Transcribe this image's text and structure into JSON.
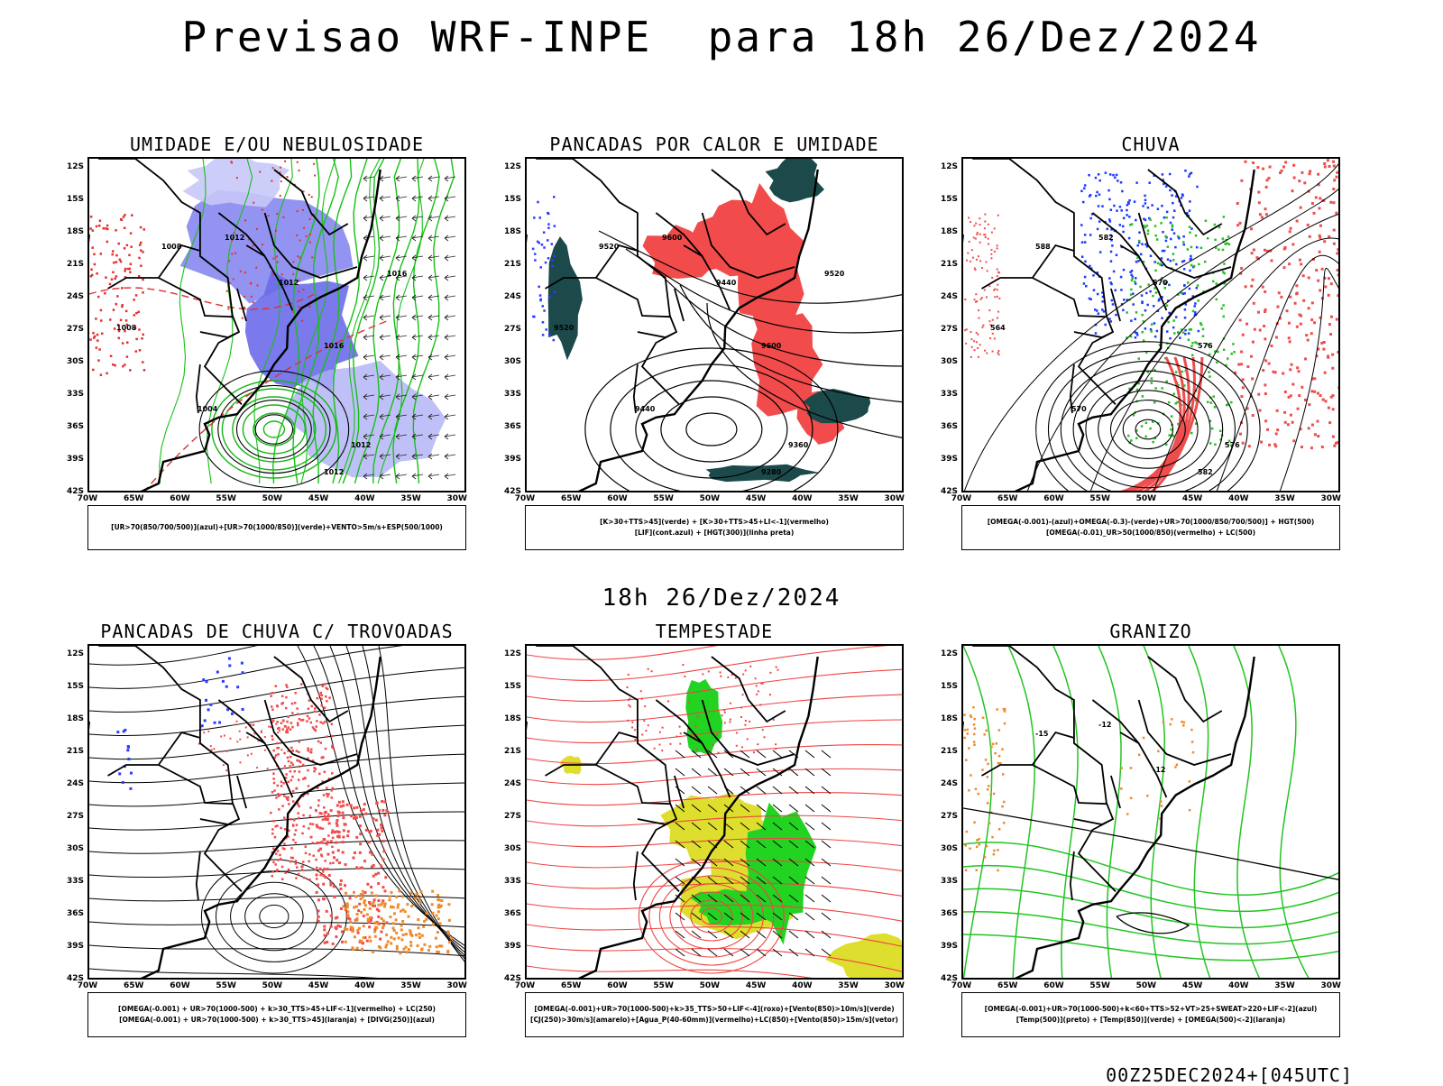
{
  "title": "Previsao WRF-INPE  para 18h 26/Dez/2024",
  "subtitle": "18h 26/Dez/2024",
  "footer": "00Z25DEC2024+[045UTC]",
  "axes": {
    "lat_labels": [
      "12S",
      "15S",
      "18S",
      "21S",
      "24S",
      "27S",
      "30S",
      "33S",
      "36S",
      "39S",
      "42S"
    ],
    "lon_labels": [
      "70W",
      "65W",
      "60W",
      "55W",
      "50W",
      "45W",
      "40W",
      "35W",
      "30W"
    ]
  },
  "panels": [
    {
      "title": "UMIDADE E/OU NEBULOSIDADE",
      "legend": [
        "[UR>70(850/700/500)](azul)+[UR>70(1000/850)](verde)+VENTO>5m/s+ESP(500/1000)"
      ],
      "labels": [
        "1012",
        "1008",
        "1012",
        "1016",
        "1008",
        "1004",
        "1012",
        "1012",
        "1016"
      ]
    },
    {
      "title": "PANCADAS POR CALOR E UMIDADE",
      "legend": [
        "[K>30+TTS>45](verde) + [K>30+TTS>45+LI<-1](vermelho)",
        "[LIF](cont.azul) + [HGT(300)](linha preta)"
      ],
      "labels": [
        "9600",
        "9520",
        "9440",
        "9600",
        "9520",
        "9440",
        "9360",
        "9280",
        "9520"
      ]
    },
    {
      "title": "CHUVA",
      "legend": [
        "[OMEGA(-0.001)-(azul)+OMEGA(-0.3)-(verde)+UR>70(1000/850/700/500)] + HGT(500)",
        "[OMEGA(-0.01)_UR>50(1000/850)(vermelho) + LC(500)"
      ],
      "labels": [
        "582",
        "588",
        "570",
        "576",
        "564",
        "570",
        "576",
        "582"
      ]
    },
    {
      "title": "PANCADAS DE CHUVA C/ TROVOADAS",
      "legend": [
        "[OMEGA(-0.001) + UR>70(1000-500) + k>30_TTS>45+LIF<-1](vermelho) + LC(250)",
        "[OMEGA(-0.001) + UR>70(1000-500) + k>30_TTS>45](laranja) + [DIVG(250)](azul)"
      ],
      "labels": []
    },
    {
      "title": "TEMPESTADE",
      "legend": [
        "[OMEGA(-0.001)+UR>70(1000-500)+k>35_TTS>50+LIF<-4](roxo)+[Vento(850)>10m/s](verde)",
        "[CJ(250)>30m/s](amarelo)+[Agua_P(40-60mm)](vermelho)+LC(850)+[Vento(850)>15m/s](vetor)"
      ],
      "labels": []
    },
    {
      "title": "GRANIZO",
      "legend": [
        "[OMEGA(-0.001)+UR>70(1000-500)+k<60+TTS>52+VT>25+SWEAT>220+LIF<-2](azul)",
        "[Temp(500)](preto) + [Temp(850)](verde) + [OMEGA(500)<-2](laranja)"
      ],
      "labels": [
        "-12",
        "-15",
        "-12"
      ]
    }
  ]
}
